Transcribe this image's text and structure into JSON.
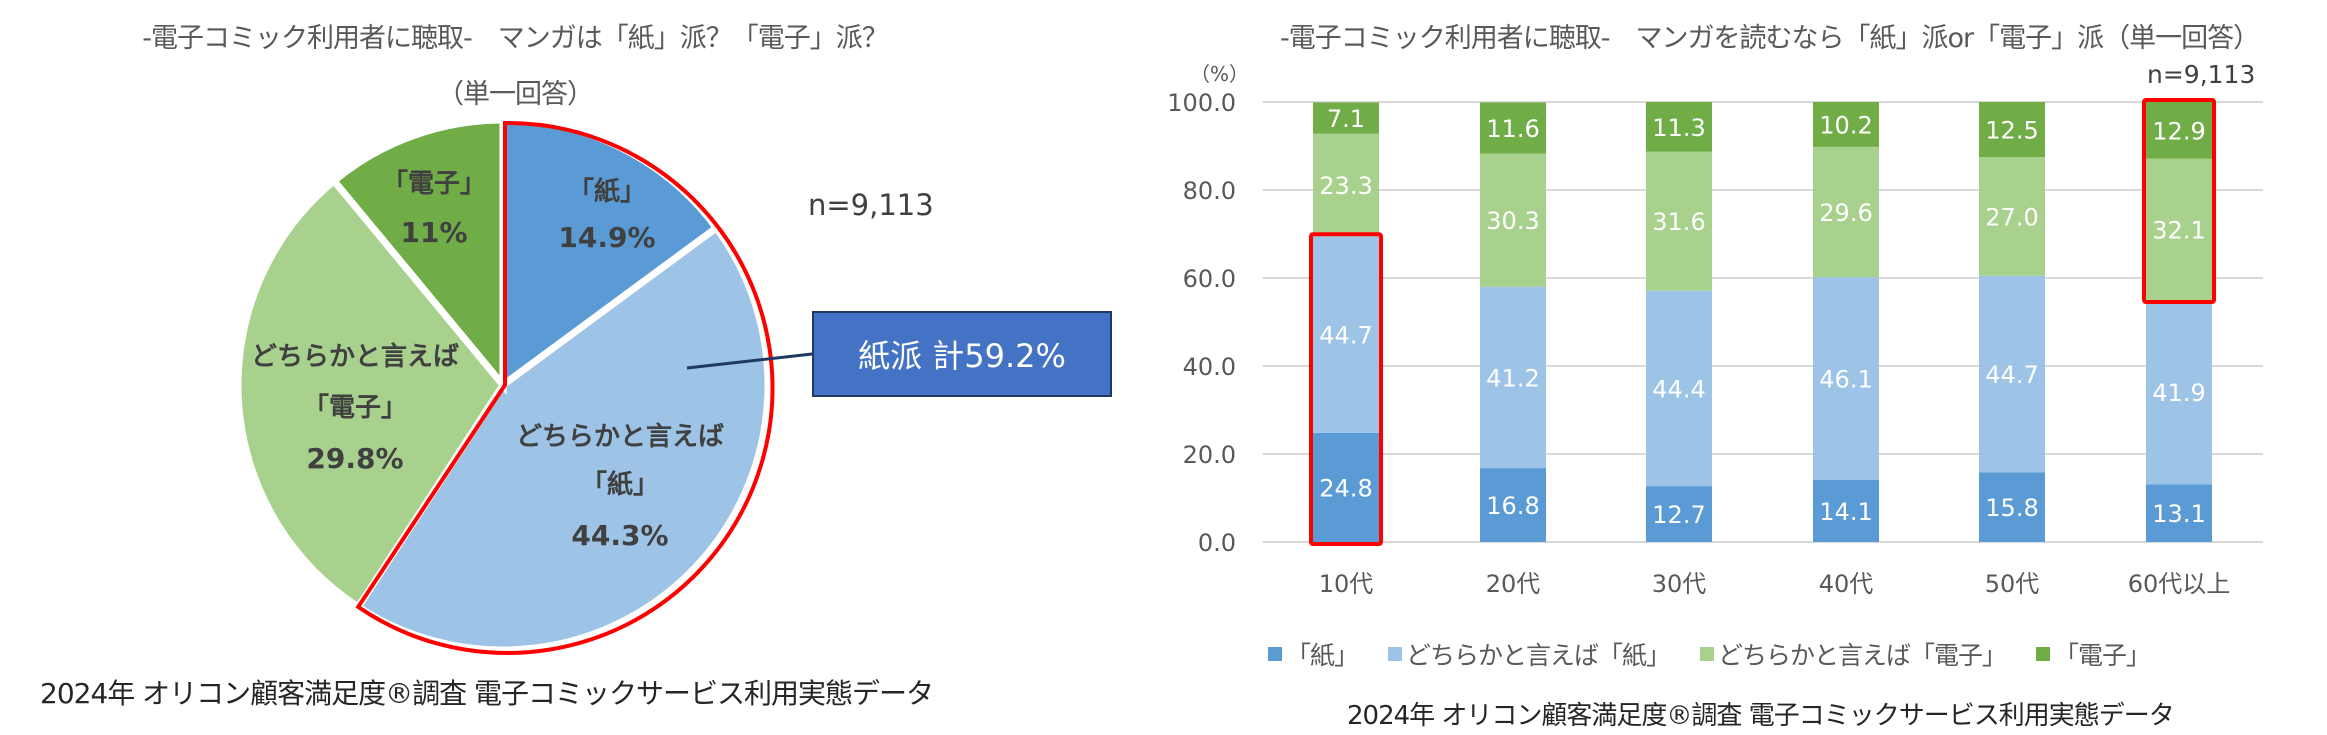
{
  "left_panel": {
    "title_line1": "-電子コミック利用者に聴取-　マンガは「紙」派？「電子」派？",
    "title_line2": "（単一回答）",
    "n_label": "n=9,113",
    "callout_label": "紙派 計59.2%",
    "source": "2024年 オリコン顧客満足度®調査 電子コミックサービス利用実態データ",
    "slices": [
      {
        "line1": "「紙」",
        "line2": "",
        "value_label": "14.9%"
      },
      {
        "line1": "どちらかと言えば",
        "line2": "「紙」",
        "value_label": "44.3%"
      },
      {
        "line1": "どちらかと言えば",
        "line2": "「電子」",
        "value_label": "29.8%"
      },
      {
        "line1": "「電子」",
        "line2": "",
        "value_label": "11%"
      }
    ]
  },
  "right_panel": {
    "title": "-電子コミック利用者に聴取-　マンガを読むなら「紙」派or「電子」派（単一回答）",
    "unit_label": "（%）",
    "n_label": "n=9,113",
    "y_ticks": [
      "100.0",
      "80.0",
      "60.0",
      "40.0",
      "20.0",
      "0.0"
    ],
    "categories": [
      "10代",
      "20代",
      "30代",
      "40代",
      "50代",
      "60代以上"
    ],
    "legend": [
      "「紙」",
      "どちらかと言えば「紙」",
      "どちらかと言えば「電子」",
      "「電子」"
    ],
    "source": "2024年 オリコン顧客満足度®調査 電子コミックサービス利用実態データ"
  },
  "colors": {
    "paper": "#5B9BD5",
    "rather_paper": "#9DC3E6",
    "rather_digital": "#A9D18E",
    "digital": "#70AD47",
    "highlight": "#FF0000",
    "callout_fill": "#4472C4"
  },
  "chart_data": [
    {
      "type": "pie",
      "title": "-電子コミック利用者に聴取- マンガは「紙」派？「電子」派？（単一回答）",
      "categories": [
        "「紙」",
        "どちらかと言えば「紙」",
        "どちらかと言えば「電子」",
        "「電子」"
      ],
      "values": [
        14.9,
        44.3,
        29.8,
        11.0
      ],
      "unit": "%",
      "n": "9,113",
      "annotations": [
        "紙派 計59.2%"
      ],
      "highlighted": [
        "「紙」",
        "どちらかと言えば「紙」"
      ]
    },
    {
      "type": "bar",
      "stacked": true,
      "title": "-電子コミック利用者に聴取- マンガを読むなら「紙」派or「電子」派（単一回答）",
      "categories": [
        "10代",
        "20代",
        "30代",
        "40代",
        "50代",
        "60代以上"
      ],
      "series": [
        {
          "name": "「紙」",
          "values": [
            24.8,
            16.8,
            12.7,
            14.1,
            15.8,
            13.1
          ]
        },
        {
          "name": "どちらかと言えば「紙」",
          "values": [
            44.7,
            41.2,
            44.4,
            46.1,
            44.7,
            41.9
          ]
        },
        {
          "name": "どちらかと言えば「電子」",
          "values": [
            23.3,
            30.3,
            31.6,
            29.6,
            27.0,
            32.1
          ]
        },
        {
          "name": "「電子」",
          "values": [
            7.1,
            11.6,
            11.3,
            10.2,
            12.5,
            12.9
          ]
        }
      ],
      "xlabel": "",
      "ylabel": "（%）",
      "ylim": [
        0,
        100
      ],
      "y_ticks": [
        0,
        20,
        40,
        60,
        80,
        100
      ],
      "grid": true,
      "legend_position": "bottom",
      "n": "9,113",
      "highlights": [
        {
          "category": "10代",
          "series": [
            "「紙」",
            "どちらかと言えば「紙」"
          ]
        },
        {
          "category": "60代以上",
          "series": [
            "どちらかと言えば「電子」",
            "「電子」"
          ]
        }
      ]
    }
  ]
}
